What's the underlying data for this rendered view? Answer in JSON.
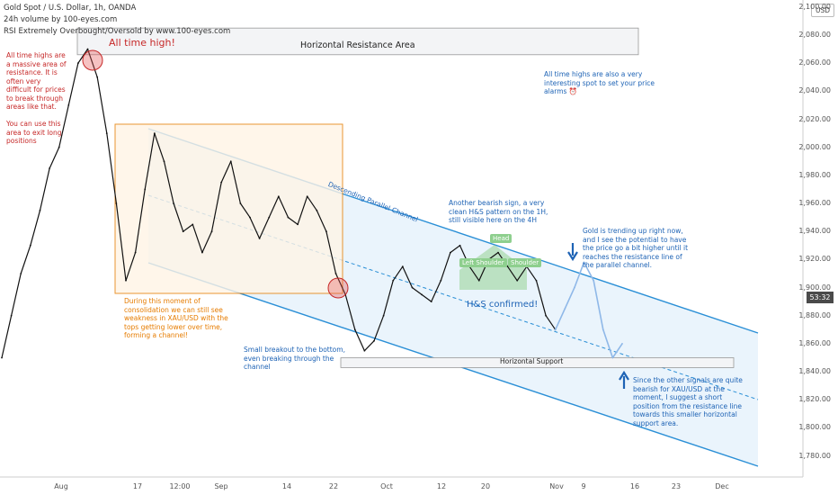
{
  "header": {
    "title": "Gold Spot / U.S. Dollar, 1h, OANDA",
    "volume_label": "24h volume by 100-eyes.com",
    "indicator_label": "RSI Extremely Overbought/Oversold by www.100-eyes.com"
  },
  "currency_badge": "USD",
  "price_tag": "53:32",
  "colors": {
    "candle": "#111111",
    "channel": "#2a8fd6",
    "channel_fill": "#e3f0fb",
    "red": "#c62828",
    "orange": "#e67c00",
    "blue_text": "#1e63b5",
    "projection": "#8fb8e8",
    "hs_green": "#7bc67b"
  },
  "annotations": {
    "all_time_high": "All time high!",
    "resistance_area": "Horizontal Resistance Area",
    "ath_note": "All time highs are\na massive area of\nresistance. It is\noften very\ndifficult for prices\nto break through\nareas like that.\n\nYou can use this\narea to exit long\npositions",
    "alarm_note": "All time highs are also a very\ninteresting spot to set your price\nalarms ⏰",
    "channel_label": "Descending Parallel Channel",
    "hs_note": "Another bearish sign, a very\nclean H&S pattern on the 1H,\nstill visible here on the 4H",
    "trending_note": "Gold is trending up right now,\nand I see the potential to have\nthe price go a bit higher until it\nreaches the resistance line of\nthe parallel channel.",
    "head": "Head",
    "left_shoulder": "Left Shoulder",
    "right_shoulder": "Shoulder",
    "hs_confirmed": "H&S confirmed!",
    "consolidation_note": "During this moment of\nconsolidation we can still see\nweakness in XAU/USD with the\ntops getting lower over time,\nforming a channel!",
    "breakout_note": "Small breakout to the bottom,\neven breaking through the\nchannel",
    "support_label": "Horizontal Support",
    "short_note": "Since the other signals are quite\nbearish for XAU/USD at the\nmoment, I suggest a short\nposition from the resistance line\ntowards this smaller horizontal\nsupport area."
  },
  "chart_data": {
    "type": "line",
    "series": [
      {
        "name": "XAU/USD",
        "x": [
          0,
          2,
          4,
          6,
          8,
          10,
          12,
          14,
          16,
          18,
          20,
          22,
          24,
          26,
          28,
          30,
          32,
          34,
          36,
          38,
          40,
          42,
          44,
          46,
          48,
          50,
          52,
          54,
          56,
          58,
          60,
          62,
          64,
          66,
          68,
          70,
          72,
          74,
          76,
          78,
          80,
          82,
          84,
          86,
          88,
          90,
          92,
          94,
          96,
          98,
          100,
          102,
          104,
          106,
          108,
          110,
          112,
          114,
          116
        ],
        "y": [
          1850,
          1880,
          1910,
          1930,
          1955,
          1985,
          2000,
          2030,
          2060,
          2070,
          2050,
          2010,
          1960,
          1905,
          1925,
          1970,
          2010,
          1990,
          1960,
          1940,
          1945,
          1925,
          1940,
          1975,
          1990,
          1960,
          1950,
          1935,
          1950,
          1965,
          1950,
          1945,
          1965,
          1955,
          1940,
          1910,
          1895,
          1870,
          1855,
          1862,
          1880,
          1905,
          1915,
          1900,
          1895,
          1890,
          1905,
          1925,
          1930,
          1915,
          1905,
          1920,
          1925,
          1915,
          1905,
          1915,
          1905,
          1880,
          1870
        ]
      },
      {
        "name": "Projection",
        "x": [
          116,
          118,
          120,
          122,
          124,
          126,
          128,
          130
        ],
        "y": [
          1870,
          1885,
          1900,
          1918,
          1905,
          1870,
          1850,
          1860
        ]
      }
    ],
    "x_ticks": [
      "Aug",
      "17",
      "12:00",
      "Sep",
      "14",
      "22",
      "Oct",
      "12",
      "20",
      "Nov",
      "9",
      "16",
      "23",
      "Dec"
    ],
    "y_ticks": [
      1780,
      1800,
      1820,
      1840,
      1860,
      1880,
      1900,
      1920,
      1940,
      1960,
      1980,
      2000,
      2020,
      2040,
      2060,
      2080,
      2100
    ],
    "ylim": [
      1765,
      2105
    ],
    "resistance_zone": [
      2066,
      2085
    ],
    "support_zone": [
      1843,
      1850
    ],
    "grid": false
  }
}
